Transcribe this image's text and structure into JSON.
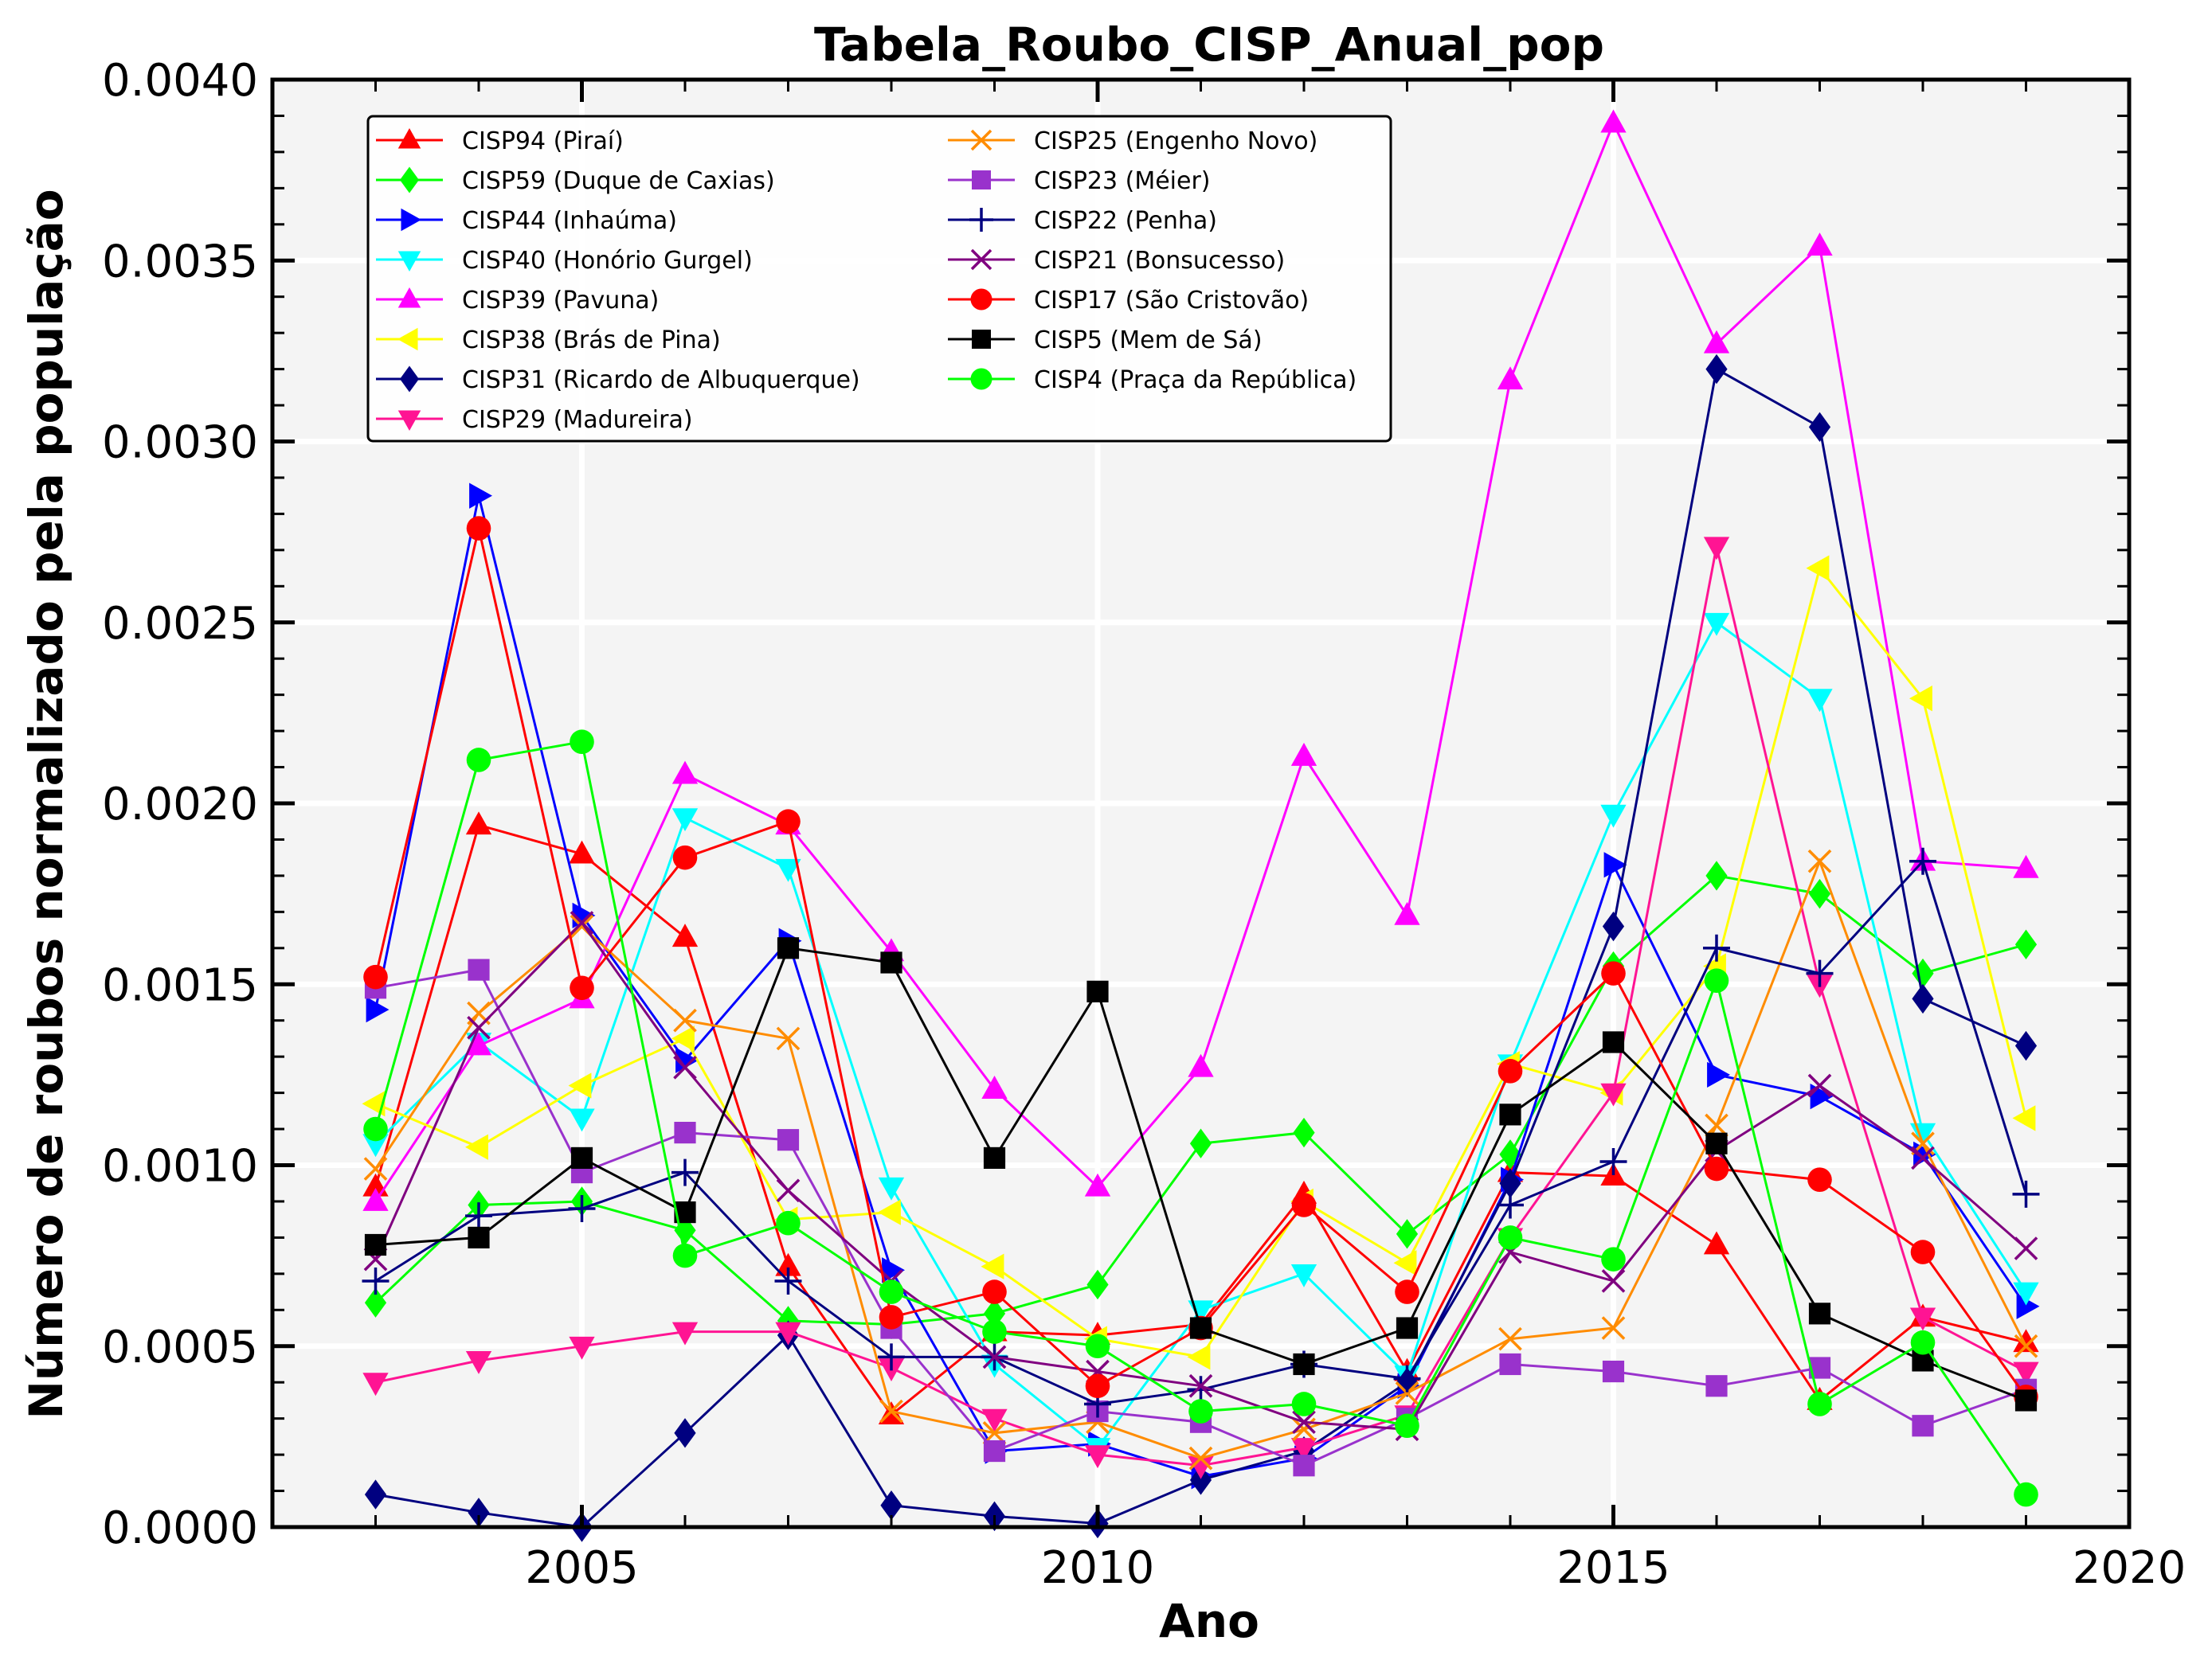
{
  "chart_data": {
    "type": "line",
    "title": "Tabela_Roubo_CISP_Anual_pop",
    "xlabel": "Ano",
    "ylabel": "Número de roubos normalizado pela população",
    "xlim": [
      2002.0,
      2020.0
    ],
    "ylim": [
      0,
      0.004
    ],
    "x_ticks": [
      2005,
      2010,
      2015,
      2020
    ],
    "y_ticks": [
      0.0,
      0.0005,
      0.001,
      0.0015,
      0.002,
      0.0025,
      0.003,
      0.0035,
      0.004
    ],
    "x_tick_labels": [
      "2005",
      "2010",
      "2015",
      "2020"
    ],
    "y_tick_labels": [
      "0.0000",
      "0.0005",
      "0.0010",
      "0.0015",
      "0.0020",
      "0.0025",
      "0.0030",
      "0.0035",
      "0.0040"
    ],
    "grid": true,
    "legend_position": "top-left",
    "x": [
      2003,
      2004,
      2005,
      2006,
      2007,
      2008,
      2009,
      2010,
      2011,
      2012,
      2013,
      2014,
      2015,
      2016,
      2017,
      2018,
      2019
    ],
    "series": [
      {
        "name": "CISP94 (Piraí)",
        "color": "#ff0000",
        "marker": "triangle-up",
        "values": [
          0.00094,
          0.00194,
          0.00186,
          0.00163,
          0.00072,
          0.00031,
          0.00054,
          0.00053,
          0.00056,
          0.00092,
          0.00043,
          0.00098,
          0.00097,
          0.00078,
          0.00035,
          0.00058,
          0.00051
        ]
      },
      {
        "name": "CISP59 (Duque de Caxias)",
        "color": "#00ff00",
        "marker": "diamond",
        "values": [
          0.00062,
          0.00089,
          0.0009,
          0.00082,
          0.00057,
          0.00056,
          0.00059,
          0.00067,
          0.00106,
          0.00109,
          0.00081,
          0.00103,
          0.00155,
          0.0018,
          0.00175,
          0.00153,
          0.00161
        ]
      },
      {
        "name": "CISP44 (Inhaúma)",
        "color": "#0000ff",
        "marker": "triangle-right",
        "values": [
          0.00143,
          0.00285,
          0.00169,
          0.00129,
          0.00162,
          0.00071,
          0.00021,
          0.00023,
          0.00014,
          0.00019,
          0.00039,
          0.00096,
          0.00183,
          0.00125,
          0.00119,
          0.00103,
          0.00061
        ]
      },
      {
        "name": "CISP40 (Honório Gurgel)",
        "color": "#00ffff",
        "marker": "triangle-down",
        "values": [
          0.00106,
          0.00134,
          0.00113,
          0.00196,
          0.00182,
          0.00094,
          0.00045,
          0.00022,
          0.0006,
          0.0007,
          0.00042,
          0.00128,
          0.00197,
          0.0025,
          0.00229,
          0.00109,
          0.00065
        ]
      },
      {
        "name": "CISP39 (Pavuna)",
        "color": "#ff00ff",
        "marker": "triangle-up",
        "values": [
          0.0009,
          0.00133,
          0.00146,
          0.00208,
          0.00194,
          0.00159,
          0.00121,
          0.00094,
          0.00127,
          0.00213,
          0.00169,
          0.00317,
          0.00388,
          0.00327,
          0.00354,
          0.00184,
          0.00182
        ]
      },
      {
        "name": "CISP38 (Brás de Pina)",
        "color": "#ffff00",
        "marker": "triangle-left",
        "values": [
          0.00117,
          0.00105,
          0.00122,
          0.00135,
          0.00085,
          0.00087,
          0.00072,
          0.00052,
          0.00047,
          0.0009,
          0.00073,
          0.00128,
          0.0012,
          0.00155,
          0.00265,
          0.00229,
          0.00113
        ]
      },
      {
        "name": "CISP31 (Ricardo de Albuquerque)",
        "color": "#000080",
        "marker": "diamond",
        "values": [
          9e-05,
          4e-05,
          0.0,
          0.00026,
          0.00053,
          6e-05,
          3e-05,
          1e-05,
          0.00013,
          0.00021,
          0.0004,
          0.00095,
          0.00166,
          0.0032,
          0.00304,
          0.00146,
          0.00133
        ]
      },
      {
        "name": "CISP29 (Madureira)",
        "color": "#ff1493",
        "marker": "triangle-down",
        "values": [
          0.0004,
          0.00046,
          0.0005,
          0.00054,
          0.00054,
          0.00044,
          0.0003,
          0.0002,
          0.00017,
          0.00022,
          0.00031,
          0.0008,
          0.0012,
          0.00271,
          0.0015,
          0.00058,
          0.00043
        ]
      },
      {
        "name": "CISP25 (Engenho Novo)",
        "color": "#ff8c00",
        "marker": "x",
        "values": [
          0.00099,
          0.00142,
          0.00166,
          0.0014,
          0.00135,
          0.00032,
          0.00026,
          0.00029,
          0.00019,
          0.00027,
          0.00037,
          0.00052,
          0.00055,
          0.00111,
          0.00184,
          0.00106,
          0.0005
        ]
      },
      {
        "name": "CISP23 (Méier)",
        "color": "#9932cc",
        "marker": "square",
        "values": [
          0.00149,
          0.00154,
          0.00098,
          0.00109,
          0.00107,
          0.00055,
          0.00021,
          0.00032,
          0.00029,
          0.00017,
          0.0003,
          0.00045,
          0.00043,
          0.00039,
          0.00044,
          0.00028,
          0.00038
        ]
      },
      {
        "name": "CISP22 (Penha)",
        "color": "#000080",
        "marker": "plus",
        "values": [
          0.00068,
          0.00086,
          0.00088,
          0.00098,
          0.00068,
          0.00047,
          0.00047,
          0.00034,
          0.00038,
          0.00045,
          0.00041,
          0.00089,
          0.00101,
          0.0016,
          0.00153,
          0.00184,
          0.00092
        ]
      },
      {
        "name": "CISP21 (Bonsucesso)",
        "color": "#800080",
        "marker": "x",
        "values": [
          0.00074,
          0.00138,
          0.00167,
          0.00127,
          0.00093,
          0.00068,
          0.00047,
          0.00043,
          0.00039,
          0.00029,
          0.00027,
          0.00076,
          0.00068,
          0.00104,
          0.00122,
          0.00102,
          0.00077
        ]
      },
      {
        "name": "CISP17 (São Cristovão)",
        "color": "#ff0000",
        "marker": "circle",
        "values": [
          0.00152,
          0.00276,
          0.00149,
          0.00185,
          0.00195,
          0.00058,
          0.00065,
          0.00039,
          0.00055,
          0.00089,
          0.00065,
          0.00126,
          0.00153,
          0.00099,
          0.00096,
          0.00076,
          0.00036
        ]
      },
      {
        "name": "CISP5 (Mem de Sá)",
        "color": "#000000",
        "marker": "square",
        "values": [
          0.00078,
          0.0008,
          0.00102,
          0.00087,
          0.0016,
          0.00156,
          0.00102,
          0.00148,
          0.00055,
          0.00045,
          0.00055,
          0.00114,
          0.00134,
          0.00106,
          0.00059,
          0.00046,
          0.00035
        ]
      },
      {
        "name": "CISP4 (Praça da República)",
        "color": "#00ff00",
        "marker": "circle",
        "values": [
          0.0011,
          0.00212,
          0.00217,
          0.00075,
          0.00084,
          0.00065,
          0.00054,
          0.0005,
          0.00032,
          0.00034,
          0.00028,
          0.0008,
          0.00074,
          0.00151,
          0.00034,
          0.00051,
          9e-05
        ]
      }
    ]
  }
}
